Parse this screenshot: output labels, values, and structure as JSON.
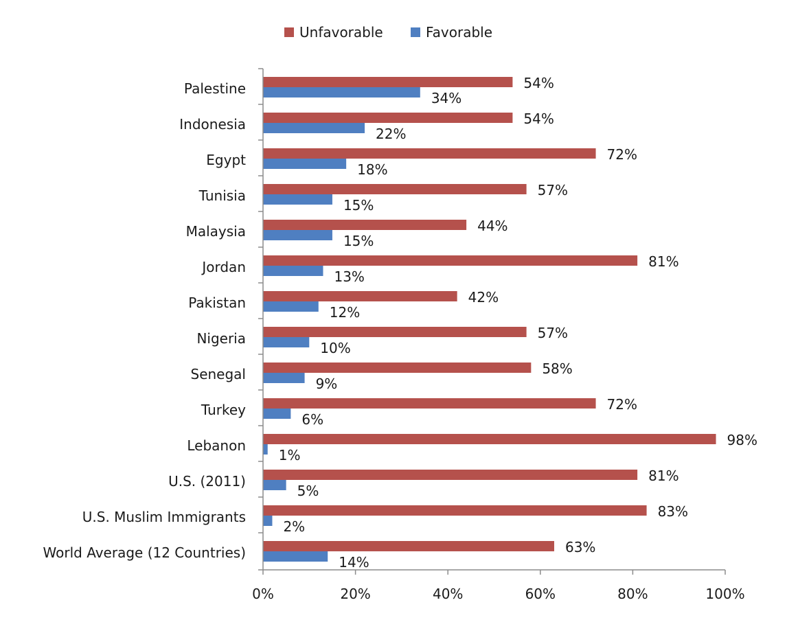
{
  "chart_data": {
    "type": "bar",
    "orientation": "horizontal",
    "categories": [
      "Palestine",
      "Indonesia",
      "Egypt",
      "Tunisia",
      "Malaysia",
      "Jordan",
      "Pakistan",
      "Nigeria",
      "Senegal",
      "Turkey",
      "Lebanon",
      "U.S. (2011)",
      "U.S. Muslim Immigrants",
      "World Average (12 Countries)"
    ],
    "series": [
      {
        "name": "Unfavorable",
        "color": "#b5514c",
        "values": [
          54,
          54,
          72,
          57,
          44,
          81,
          42,
          57,
          58,
          72,
          98,
          81,
          83,
          63
        ],
        "labels": [
          "54%",
          "54%",
          "72%",
          "57%",
          "44%",
          "81%",
          "42%",
          "57%",
          "58%",
          "72%",
          "98%",
          "81%",
          "83%",
          "63%"
        ]
      },
      {
        "name": "Favorable",
        "color": "#4f7fc1",
        "values": [
          34,
          22,
          18,
          15,
          15,
          13,
          12,
          10,
          9,
          6,
          1,
          5,
          2,
          14
        ],
        "labels": [
          "34%",
          "22%",
          "18%",
          "15%",
          "15%",
          "13%",
          "12%",
          "10%",
          "9%",
          "6%",
          "1%",
          "5%",
          "2%",
          "14%"
        ]
      }
    ],
    "xlim": [
      0,
      100
    ],
    "xticks": [
      0,
      20,
      40,
      60,
      80,
      100
    ],
    "xtick_labels": [
      "0%",
      "20%",
      "40%",
      "60%",
      "80%",
      "100%"
    ],
    "legend_position": "top-center",
    "grid": false
  }
}
